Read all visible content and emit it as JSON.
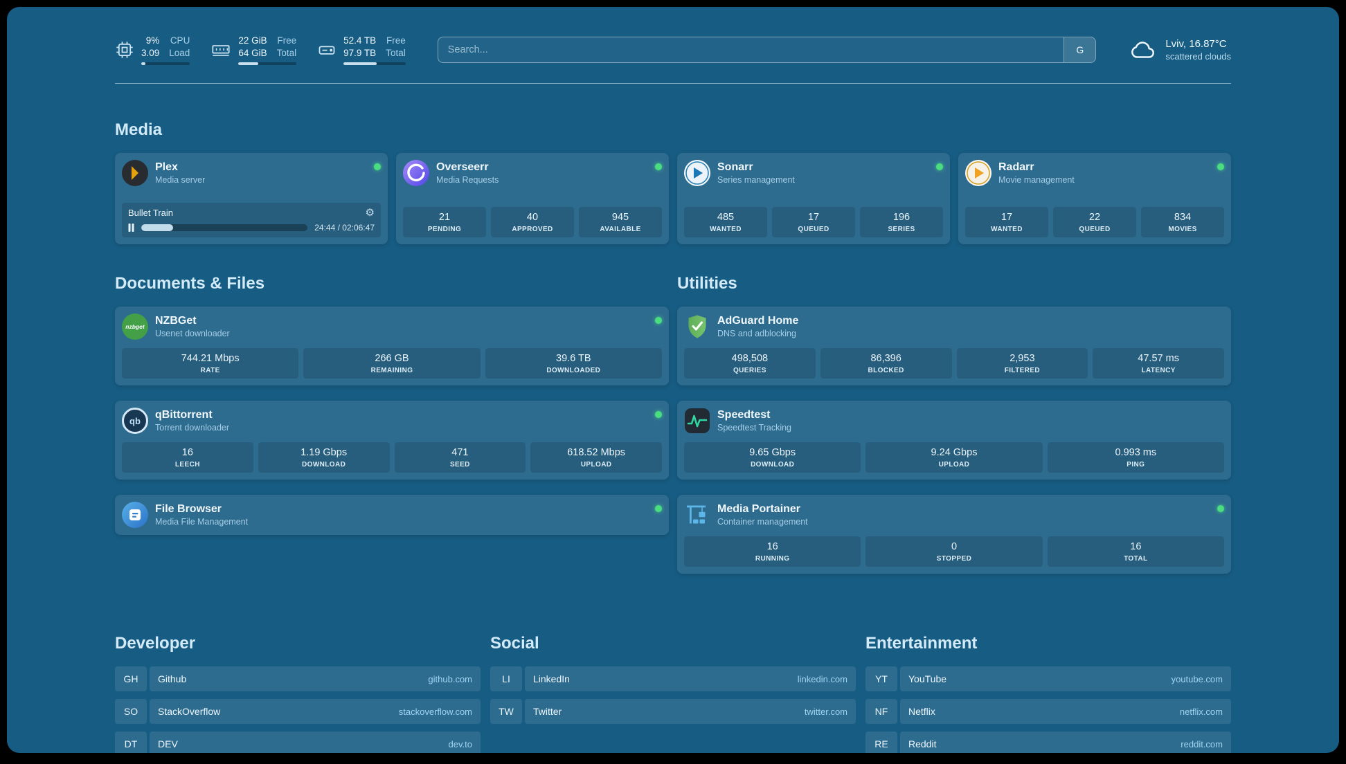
{
  "topbar": {
    "cpu": {
      "value1": "9%",
      "value2": "3.09",
      "label1": "CPU",
      "label2": "Load",
      "progress_pct": 9
    },
    "memory": {
      "value1": "22 GiB",
      "value2": "64 GiB",
      "label1": "Free",
      "label2": "Total",
      "progress_pct": 34
    },
    "disk": {
      "value1": "52.4 TB",
      "value2": "97.9 TB",
      "label1": "Free",
      "label2": "Total",
      "progress_pct": 53
    },
    "search": {
      "placeholder": "Search...",
      "provider": "G"
    },
    "weather": {
      "location": "Lviv, 16.87°C",
      "condition": "scattered clouds"
    }
  },
  "sections": {
    "media": "Media",
    "documents": "Documents & Files",
    "utilities": "Utilities",
    "developer": "Developer",
    "social": "Social",
    "entertainment": "Entertainment"
  },
  "services": {
    "plex": {
      "title": "Plex",
      "subtitle": "Media server",
      "now_playing": "Bullet Train",
      "time": "24:44 / 02:06:47",
      "progress_pct": 19
    },
    "overseerr": {
      "title": "Overseerr",
      "subtitle": "Media Requests",
      "stats": [
        {
          "value": "21",
          "label": "PENDING"
        },
        {
          "value": "40",
          "label": "APPROVED"
        },
        {
          "value": "945",
          "label": "AVAILABLE"
        }
      ]
    },
    "sonarr": {
      "title": "Sonarr",
      "subtitle": "Series management",
      "stats": [
        {
          "value": "485",
          "label": "WANTED"
        },
        {
          "value": "17",
          "label": "QUEUED"
        },
        {
          "value": "196",
          "label": "SERIES"
        }
      ]
    },
    "radarr": {
      "title": "Radarr",
      "subtitle": "Movie management",
      "stats": [
        {
          "value": "17",
          "label": "WANTED"
        },
        {
          "value": "22",
          "label": "QUEUED"
        },
        {
          "value": "834",
          "label": "MOVIES"
        }
      ]
    },
    "nzbget": {
      "title": "NZBGet",
      "subtitle": "Usenet downloader",
      "icon_text": "nzbget",
      "stats": [
        {
          "value": "744.21 Mbps",
          "label": "RATE"
        },
        {
          "value": "266 GB",
          "label": "REMAINING"
        },
        {
          "value": "39.6 TB",
          "label": "DOWNLOADED"
        }
      ]
    },
    "qbittorrent": {
      "title": "qBittorrent",
      "subtitle": "Torrent downloader",
      "icon_text": "qb",
      "stats": [
        {
          "value": "16",
          "label": "LEECH"
        },
        {
          "value": "1.19 Gbps",
          "label": "DOWNLOAD"
        },
        {
          "value": "471",
          "label": "SEED"
        },
        {
          "value": "618.52 Mbps",
          "label": "UPLOAD"
        }
      ]
    },
    "filebrowser": {
      "title": "File Browser",
      "subtitle": "Media File Management"
    },
    "adguard": {
      "title": "AdGuard Home",
      "subtitle": "DNS and adblocking",
      "stats": [
        {
          "value": "498,508",
          "label": "QUERIES"
        },
        {
          "value": "86,396",
          "label": "BLOCKED"
        },
        {
          "value": "2,953",
          "label": "FILTERED"
        },
        {
          "value": "47.57 ms",
          "label": "LATENCY"
        }
      ]
    },
    "speedtest": {
      "title": "Speedtest",
      "subtitle": "Speedtest Tracking",
      "stats": [
        {
          "value": "9.65 Gbps",
          "label": "DOWNLOAD"
        },
        {
          "value": "9.24 Gbps",
          "label": "UPLOAD"
        },
        {
          "value": "0.993 ms",
          "label": "PING"
        }
      ]
    },
    "portainer": {
      "title": "Media Portainer",
      "subtitle": "Container management",
      "stats": [
        {
          "value": "16",
          "label": "RUNNING"
        },
        {
          "value": "0",
          "label": "STOPPED"
        },
        {
          "value": "16",
          "label": "TOTAL"
        }
      ]
    }
  },
  "bookmarks": {
    "developer": [
      {
        "abbr": "GH",
        "name": "Github",
        "url": "github.com"
      },
      {
        "abbr": "SO",
        "name": "StackOverflow",
        "url": "stackoverflow.com"
      },
      {
        "abbr": "DT",
        "name": "DEV",
        "url": "dev.to"
      }
    ],
    "social": [
      {
        "abbr": "LI",
        "name": "LinkedIn",
        "url": "linkedin.com"
      },
      {
        "abbr": "TW",
        "name": "Twitter",
        "url": "twitter.com"
      }
    ],
    "entertainment": [
      {
        "abbr": "YT",
        "name": "YouTube",
        "url": "youtube.com"
      },
      {
        "abbr": "NF",
        "name": "Netflix",
        "url": "netflix.com"
      },
      {
        "abbr": "RE",
        "name": "Reddit",
        "url": "reddit.com"
      }
    ]
  }
}
